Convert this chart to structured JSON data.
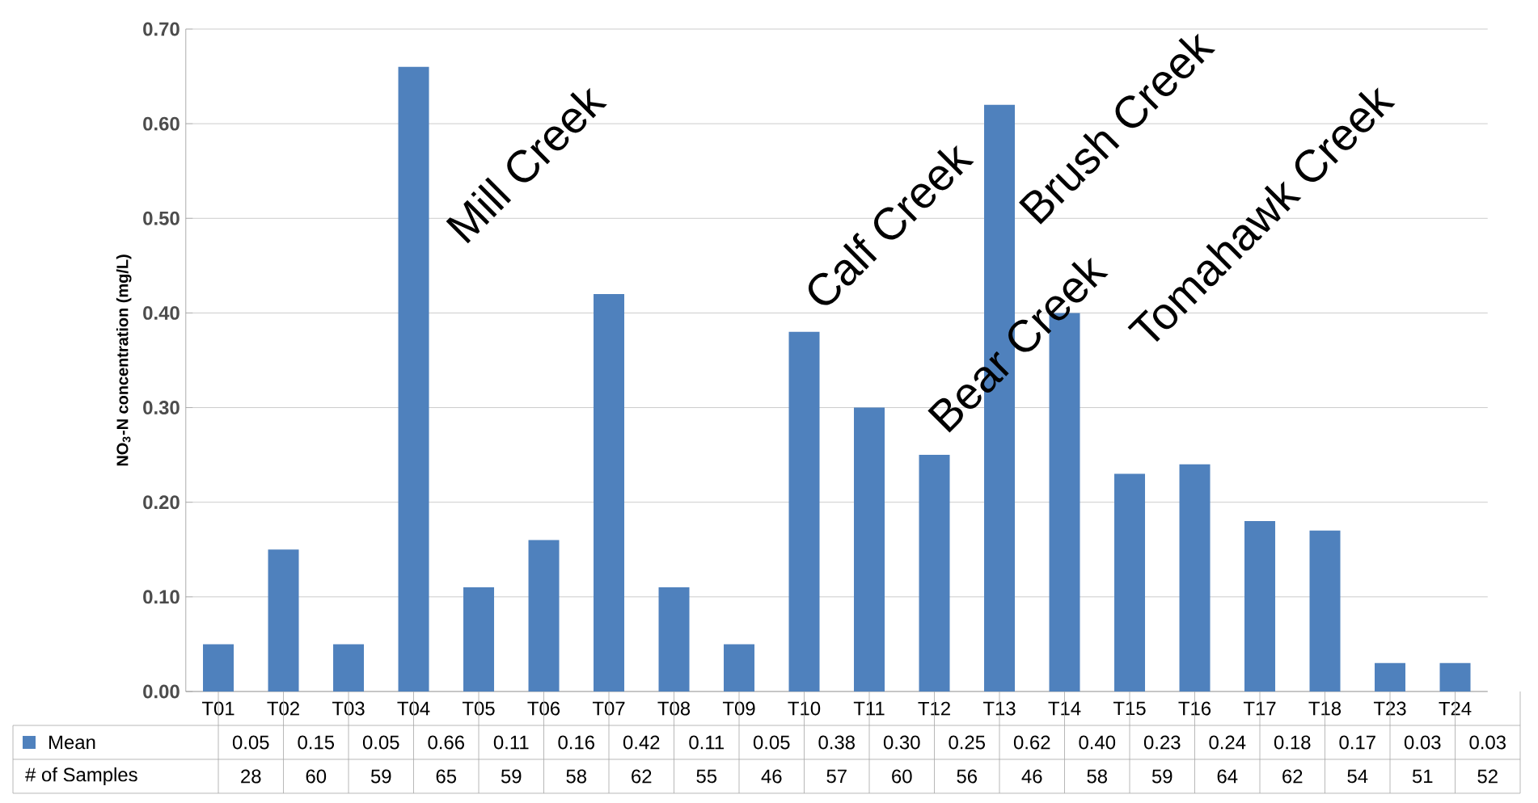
{
  "chart_data": {
    "type": "bar",
    "ylabel": "NO$_{3}$-N concentration (mg/L)",
    "categories": [
      "T01",
      "T02",
      "T03",
      "T04",
      "T05",
      "T06",
      "T07",
      "T08",
      "T09",
      "T10",
      "T11",
      "T12",
      "T13",
      "T14",
      "T15",
      "T16",
      "T17",
      "T18",
      "T23",
      "T24"
    ],
    "series": [
      {
        "name": "Mean",
        "color": "#4f81bd",
        "values": [
          0.05,
          0.15,
          0.05,
          0.66,
          0.11,
          0.16,
          0.42,
          0.11,
          0.05,
          0.38,
          0.3,
          0.25,
          0.62,
          0.4,
          0.23,
          0.24,
          0.18,
          0.17,
          0.03,
          0.03
        ],
        "value_labels": [
          "0.05",
          "0.15",
          "0.05",
          "0.66",
          "0.11",
          "0.16",
          "0.42",
          "0.11",
          "0.05",
          "0.38",
          "0.30",
          "0.25",
          "0.62",
          "0.40",
          "0.23",
          "0.24",
          "0.18",
          "0.17",
          "0.03",
          "0.03"
        ]
      }
    ],
    "ylim": [
      0,
      0.7
    ],
    "yticks": [
      {
        "value": 0,
        "label": "0.00"
      },
      {
        "value": 0.1,
        "label": "0.10"
      },
      {
        "value": 0.2,
        "label": "0.20"
      },
      {
        "value": 0.3,
        "label": "0.30"
      },
      {
        "value": 0.4,
        "label": "0.40"
      },
      {
        "value": 0.5,
        "label": "0.50"
      },
      {
        "value": 0.6,
        "label": "0.60"
      },
      {
        "value": 0.7,
        "label": "0.70"
      }
    ],
    "grid": "y",
    "legend": "bottom left",
    "annotations": [
      "Mill Creek",
      "Calf Creek",
      "Bear Creek",
      "Brush Creek",
      "Tomahawk Creek",
      "# of Samples",
      "28",
      "60",
      "59",
      "65",
      "59",
      "58",
      "62",
      "55",
      "46",
      "57",
      "60",
      "56",
      "46",
      "58",
      "59",
      "64",
      "62",
      "54",
      "51",
      "52"
    ]
  }
}
